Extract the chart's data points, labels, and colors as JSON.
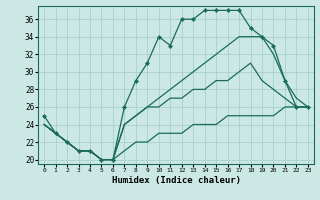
{
  "xlabel": "Humidex (Indice chaleur)",
  "bg_color": "#cce8e4",
  "grid_color": "#a0ccc8",
  "line_color": "#1a6b5a",
  "xlim": [
    -0.5,
    23.5
  ],
  "ylim": [
    19.5,
    37.5
  ],
  "yticks": [
    20,
    22,
    24,
    26,
    28,
    30,
    32,
    34,
    36
  ],
  "xticks": [
    0,
    1,
    2,
    3,
    4,
    5,
    6,
    7,
    8,
    9,
    10,
    11,
    12,
    13,
    14,
    15,
    16,
    17,
    18,
    19,
    20,
    21,
    22,
    23
  ],
  "lines": [
    {
      "x": [
        0,
        1,
        2,
        3,
        4,
        5,
        6,
        7,
        8,
        9,
        10,
        11,
        12,
        13,
        14,
        15,
        16,
        17,
        18,
        19,
        20,
        21,
        22,
        23
      ],
      "y": [
        25,
        23,
        22,
        21,
        21,
        20,
        20,
        26,
        29,
        31,
        34,
        33,
        36,
        36,
        37,
        37,
        37,
        37,
        35,
        34,
        33,
        29,
        26,
        26
      ],
      "marker": true
    },
    {
      "x": [
        0,
        1,
        2,
        3,
        4,
        5,
        6,
        7,
        8,
        9,
        10,
        11,
        12,
        13,
        14,
        15,
        16,
        17,
        18,
        19,
        20,
        21,
        22,
        23
      ],
      "y": [
        24,
        23,
        22,
        21,
        21,
        20,
        20,
        24,
        25,
        26,
        27,
        28,
        29,
        30,
        31,
        32,
        33,
        34,
        34,
        34,
        32,
        29,
        27,
        26
      ],
      "marker": false
    },
    {
      "x": [
        0,
        1,
        2,
        3,
        4,
        5,
        6,
        7,
        8,
        9,
        10,
        11,
        12,
        13,
        14,
        15,
        16,
        17,
        18,
        19,
        20,
        21,
        22,
        23
      ],
      "y": [
        24,
        23,
        22,
        21,
        21,
        20,
        20,
        24,
        25,
        26,
        26,
        27,
        27,
        28,
        28,
        29,
        29,
        30,
        31,
        29,
        28,
        27,
        26,
        26
      ],
      "marker": false
    },
    {
      "x": [
        0,
        1,
        2,
        3,
        4,
        5,
        6,
        7,
        8,
        9,
        10,
        11,
        12,
        13,
        14,
        15,
        16,
        17,
        18,
        19,
        20,
        21,
        22,
        23
      ],
      "y": [
        24,
        23,
        22,
        21,
        21,
        20,
        20,
        21,
        22,
        22,
        23,
        23,
        23,
        24,
        24,
        24,
        25,
        25,
        25,
        25,
        25,
        26,
        26,
        26
      ],
      "marker": false
    }
  ]
}
